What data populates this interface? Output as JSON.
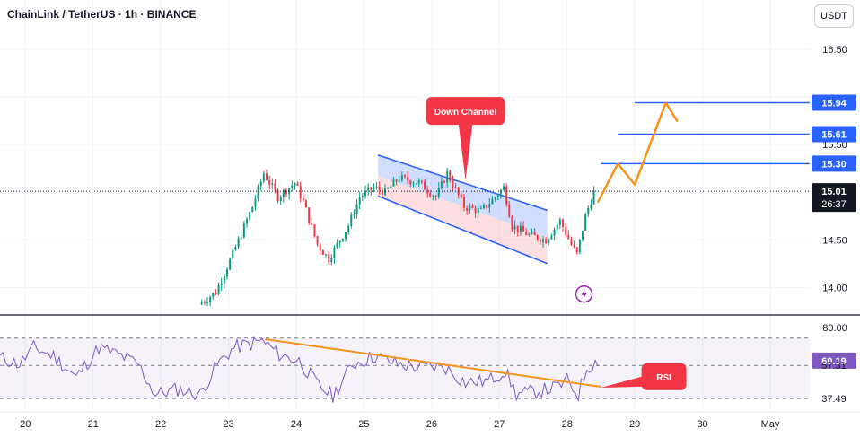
{
  "header": {
    "title": "ChainLink / TetherUS · 1h · BINANCE",
    "currency_button": "USDT"
  },
  "colors": {
    "up": "#089981",
    "down": "#f23645",
    "channel_fill": "#2962ff",
    "level_line": "#2962ff",
    "projection": "#f7931a",
    "rsi_line": "#7e57c2",
    "rsi_trend": "#f7931a",
    "callout": "#f23645",
    "background": "#ffffff"
  },
  "chart_data": [
    {
      "type": "candlestick",
      "symbol": "LINKUSDT",
      "interval": "1h",
      "ylim": [
        13.72,
        17.02
      ],
      "xlim": [
        "2024-04-19T15:00",
        "2024-05-01T14:00"
      ],
      "yticks": [
        14.0,
        14.5,
        15.5,
        16.5
      ],
      "xticks": [
        {
          "label": "20",
          "x": "2024-04-20T00:00"
        },
        {
          "label": "21",
          "x": "2024-04-21T00:00"
        },
        {
          "label": "22",
          "x": "2024-04-22T00:00"
        },
        {
          "label": "23",
          "x": "2024-04-23T00:00"
        },
        {
          "label": "24",
          "x": "2024-04-24T00:00"
        },
        {
          "label": "25",
          "x": "2024-04-25T00:00"
        },
        {
          "label": "26",
          "x": "2024-04-26T00:00"
        },
        {
          "label": "27",
          "x": "2024-04-27T00:00"
        },
        {
          "label": "28",
          "x": "2024-04-28T00:00"
        },
        {
          "label": "29",
          "x": "2024-04-29T00:00"
        },
        {
          "label": "30",
          "x": "2024-04-30T00:00"
        },
        {
          "label": "May",
          "x": "2024-05-01T00:00"
        }
      ],
      "price_anchors": [
        {
          "t": "2024-04-22T14:00",
          "p": 13.82
        },
        {
          "t": "2024-04-22T20:00",
          "p": 13.95
        },
        {
          "t": "2024-04-23T02:00",
          "p": 14.35
        },
        {
          "t": "2024-04-23T09:00",
          "p": 14.85
        },
        {
          "t": "2024-04-23T13:00",
          "p": 15.2
        },
        {
          "t": "2024-04-23T18:00",
          "p": 14.95
        },
        {
          "t": "2024-04-24T00:00",
          "p": 15.1
        },
        {
          "t": "2024-04-24T03:00",
          "p": 14.9
        },
        {
          "t": "2024-04-24T08:00",
          "p": 14.45
        },
        {
          "t": "2024-04-24T12:00",
          "p": 14.3
        },
        {
          "t": "2024-04-24T19:00",
          "p": 14.65
        },
        {
          "t": "2024-04-24T23:00",
          "p": 14.95
        },
        {
          "t": "2024-04-25T04:00",
          "p": 15.05
        },
        {
          "t": "2024-04-25T08:00",
          "p": 15.0
        },
        {
          "t": "2024-04-25T13:00",
          "p": 15.15
        },
        {
          "t": "2024-04-25T20:00",
          "p": 15.1
        },
        {
          "t": "2024-04-26T02:00",
          "p": 14.95
        },
        {
          "t": "2024-04-26T06:00",
          "p": 15.2
        },
        {
          "t": "2024-04-26T12:00",
          "p": 14.85
        },
        {
          "t": "2024-04-26T18:00",
          "p": 14.8
        },
        {
          "t": "2024-04-26T23:00",
          "p": 14.95
        },
        {
          "t": "2024-04-27T02:00",
          "p": 15.05
        },
        {
          "t": "2024-04-27T05:00",
          "p": 14.65
        },
        {
          "t": "2024-04-27T11:00",
          "p": 14.55
        },
        {
          "t": "2024-04-27T17:00",
          "p": 14.5
        },
        {
          "t": "2024-04-27T22:00",
          "p": 14.7
        },
        {
          "t": "2024-04-28T02:00",
          "p": 14.45
        },
        {
          "t": "2024-04-28T04:00",
          "p": 14.35
        },
        {
          "t": "2024-04-28T07:00",
          "p": 14.75
        },
        {
          "t": "2024-04-28T10:00",
          "p": 15.0
        }
      ],
      "last_price": {
        "value": "15.01",
        "countdown": "26:37",
        "v": 15.01
      },
      "levels": [
        {
          "label": "15.30",
          "v": 15.3,
          "from": "2024-04-28T12:00"
        },
        {
          "label": "15.61",
          "v": 15.61,
          "from": "2024-04-28T18:00"
        },
        {
          "label": "15.94",
          "v": 15.94,
          "from": "2024-04-29T00:00"
        }
      ],
      "channel": {
        "upper": [
          {
            "t": "2024-04-25T05:00",
            "p": 15.39
          },
          {
            "t": "2024-04-27T17:00",
            "p": 14.81
          }
        ],
        "lower": [
          {
            "t": "2024-04-25T05:00",
            "p": 14.96
          },
          {
            "t": "2024-04-27T17:00",
            "p": 14.25
          }
        ]
      },
      "projection_path": [
        {
          "t": "2024-04-28T11:00",
          "p": 14.9
        },
        {
          "t": "2024-04-28T18:00",
          "p": 15.3
        },
        {
          "t": "2024-04-29T00:00",
          "p": 15.08
        },
        {
          "t": "2024-04-29T11:00",
          "p": 15.94
        },
        {
          "t": "2024-04-29T15:00",
          "p": 15.75
        }
      ],
      "callout": {
        "label": "Down Channel",
        "t": "2024-04-26T12:00",
        "p": 15.85,
        "tip_p": 15.13
      }
    },
    {
      "type": "line",
      "name": "RSI",
      "ylim": [
        30,
        87
      ],
      "reference_lines": [
        {
          "v": 73.68,
          "style": "dashed"
        },
        {
          "v": 57.31,
          "style": "dashed"
        },
        {
          "v": 37.49,
          "style": "dashed"
        }
      ],
      "yticks": [
        {
          "label": "80.00",
          "v": 80
        }
      ],
      "badges": [
        {
          "label": "60.19",
          "v": 60.19,
          "kind": "current"
        },
        {
          "label": "57.31",
          "v": 57.31,
          "kind": "plain"
        },
        {
          "label": "37.49",
          "v": 37.49,
          "kind": "plain"
        }
      ],
      "rsi_anchors": [
        {
          "t": "2024-04-19T15:00",
          "v": 62
        },
        {
          "t": "2024-04-19T22:00",
          "v": 58
        },
        {
          "t": "2024-04-20T03:00",
          "v": 68
        },
        {
          "t": "2024-04-20T10:00",
          "v": 63
        },
        {
          "t": "2024-04-20T18:00",
          "v": 50
        },
        {
          "t": "2024-04-21T02:00",
          "v": 68
        },
        {
          "t": "2024-04-21T10:00",
          "v": 63
        },
        {
          "t": "2024-04-21T16:00",
          "v": 58
        },
        {
          "t": "2024-04-21T22:00",
          "v": 40
        },
        {
          "t": "2024-04-22T06:00",
          "v": 43
        },
        {
          "t": "2024-04-22T14:00",
          "v": 40
        },
        {
          "t": "2024-04-22T20:00",
          "v": 58
        },
        {
          "t": "2024-04-23T02:00",
          "v": 68
        },
        {
          "t": "2024-04-23T12:00",
          "v": 72
        },
        {
          "t": "2024-04-23T18:00",
          "v": 64
        },
        {
          "t": "2024-04-24T01:00",
          "v": 60
        },
        {
          "t": "2024-04-24T08:00",
          "v": 45
        },
        {
          "t": "2024-04-24T13:00",
          "v": 39
        },
        {
          "t": "2024-04-24T20:00",
          "v": 58
        },
        {
          "t": "2024-04-25T04:00",
          "v": 63
        },
        {
          "t": "2024-04-25T12:00",
          "v": 58
        },
        {
          "t": "2024-04-25T20:00",
          "v": 56
        },
        {
          "t": "2024-04-26T04:00",
          "v": 57
        },
        {
          "t": "2024-04-26T12:00",
          "v": 47
        },
        {
          "t": "2024-04-26T20:00",
          "v": 48
        },
        {
          "t": "2024-04-27T02:00",
          "v": 54
        },
        {
          "t": "2024-04-27T06:00",
          "v": 40
        },
        {
          "t": "2024-04-27T14:00",
          "v": 42
        },
        {
          "t": "2024-04-27T20:00",
          "v": 44
        },
        {
          "t": "2024-04-28T00:00",
          "v": 48
        },
        {
          "t": "2024-04-28T04:00",
          "v": 40
        },
        {
          "t": "2024-04-28T07:00",
          "v": 56
        },
        {
          "t": "2024-04-28T11:00",
          "v": 60.19
        }
      ],
      "trendline": [
        {
          "t": "2024-04-23T13:00",
          "v": 73
        },
        {
          "t": "2024-04-28T12:00",
          "v": 44.5
        }
      ],
      "callout": {
        "label": "RSI",
        "t": "2024-04-29T10:00",
        "v": 50
      }
    }
  ]
}
